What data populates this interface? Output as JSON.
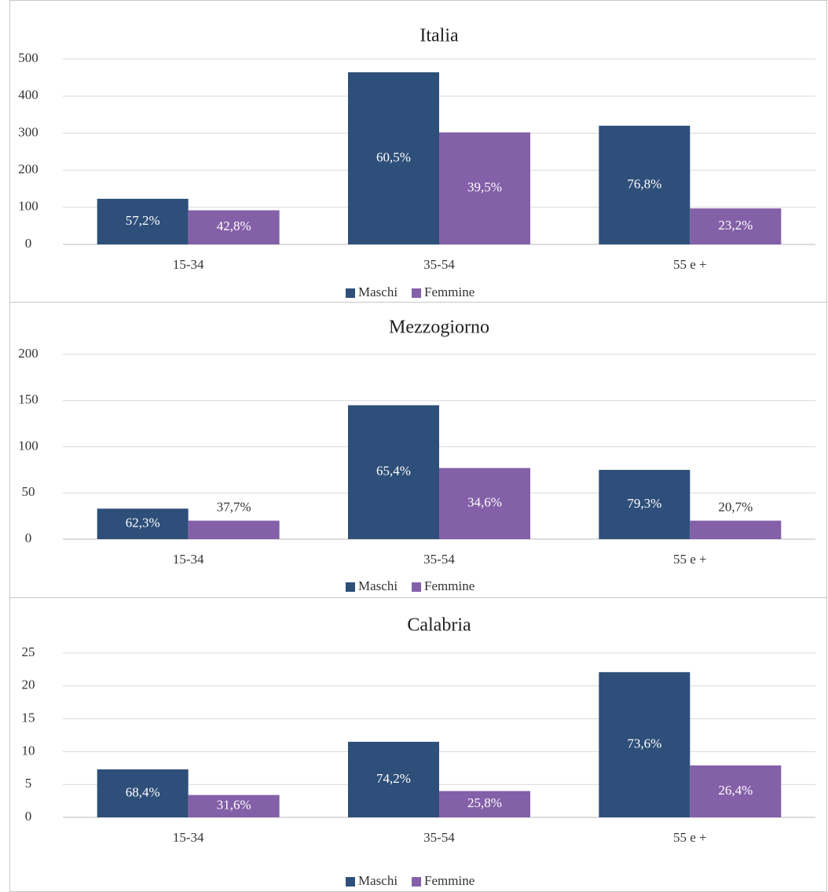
{
  "chart_data": [
    {
      "type": "bar",
      "title": "Italia",
      "categories": [
        "15-34",
        "35-54",
        "55 e +"
      ],
      "series": [
        {
          "name": "Maschi",
          "color": "#2e4f79",
          "values": [
            123,
            464,
            320
          ],
          "percent_labels": [
            "57,2%",
            "60,5%",
            "76,8%"
          ]
        },
        {
          "name": "Femmine",
          "color": "#8460a8",
          "values": [
            92,
            302,
            97
          ],
          "percent_labels": [
            "42,8%",
            "39,5%",
            "23,2%"
          ]
        }
      ],
      "ylim": [
        0,
        500
      ],
      "yticks": [
        0,
        100,
        200,
        300,
        400,
        500
      ],
      "grid": true,
      "legend": "bottom"
    },
    {
      "type": "bar",
      "title": "Mezzogiorno",
      "categories": [
        "15-34",
        "35-54",
        "55 e +"
      ],
      "series": [
        {
          "name": "Maschi",
          "color": "#2e4f79",
          "values": [
            33,
            145,
            75
          ],
          "percent_labels": [
            "62,3%",
            "65,4%",
            "79,3%"
          ]
        },
        {
          "name": "Femmine",
          "color": "#8460a8",
          "values": [
            20,
            77,
            20
          ],
          "percent_labels": [
            "37,7%",
            "34,6%",
            "20,7%"
          ]
        }
      ],
      "ylim": [
        0,
        200
      ],
      "yticks": [
        0,
        50,
        100,
        150,
        200
      ],
      "grid": true,
      "legend": "bottom"
    },
    {
      "type": "bar",
      "title": "Calabria",
      "categories": [
        "15-34",
        "35-54",
        "55 e +"
      ],
      "series": [
        {
          "name": "Maschi",
          "color": "#2e4f79",
          "values": [
            7.3,
            11.5,
            22.1
          ],
          "percent_labels": [
            "68,4%",
            "74,2%",
            "73,6%"
          ]
        },
        {
          "name": "Femmine",
          "color": "#8460a8",
          "values": [
            3.4,
            4.0,
            7.9
          ],
          "percent_labels": [
            "31,6%",
            "25,8%",
            "26,4%"
          ]
        }
      ],
      "ylim": [
        0,
        25
      ],
      "yticks": [
        0,
        5,
        10,
        15,
        20,
        25
      ],
      "grid": true,
      "legend": "bottom"
    }
  ]
}
